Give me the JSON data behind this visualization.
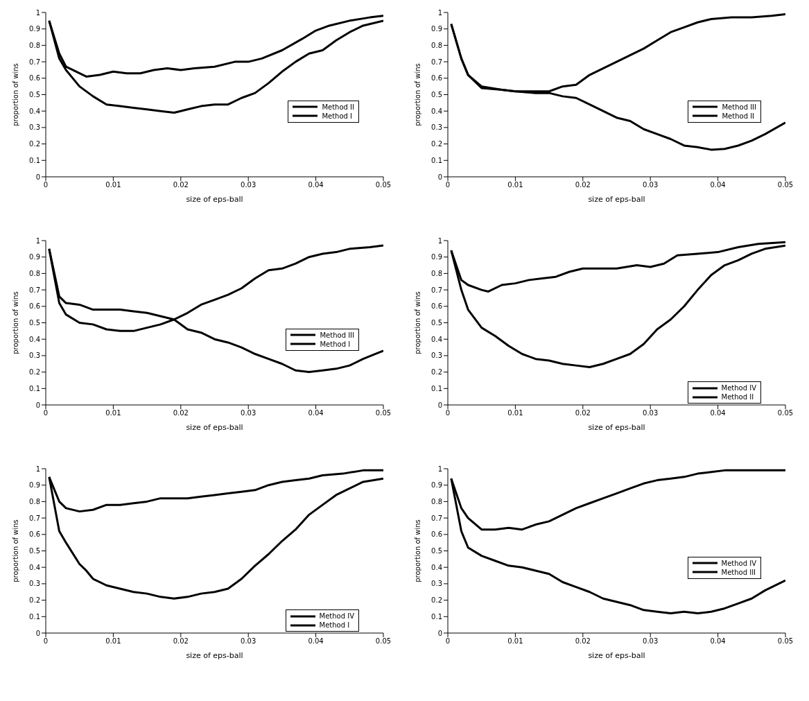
{
  "chart_data": [
    {
      "type": "line",
      "xlabel": "size of eps-ball",
      "ylabel": "proportion of wins",
      "xlim": [
        0,
        0.05
      ],
      "ylim": [
        0,
        1
      ],
      "xticks": [
        0,
        0.01,
        0.02,
        0.03,
        0.04,
        0.05
      ],
      "yticks": [
        0,
        0.1,
        0.2,
        0.3,
        0.4,
        0.5,
        0.6,
        0.7,
        0.8,
        0.9,
        1
      ],
      "legend": "right",
      "marker": "none",
      "line_style": "solid",
      "series": [
        {
          "name": "Method II",
          "color": "#000000",
          "x": [
            0.0005,
            0.002,
            0.003,
            0.005,
            0.006,
            0.008,
            0.01,
            0.012,
            0.014,
            0.016,
            0.018,
            0.02,
            0.022,
            0.025,
            0.028,
            0.03,
            0.032,
            0.035,
            0.038,
            0.04,
            0.042,
            0.045,
            0.048,
            0.05
          ],
          "values": [
            0.95,
            0.75,
            0.67,
            0.63,
            0.61,
            0.62,
            0.64,
            0.63,
            0.63,
            0.65,
            0.66,
            0.65,
            0.66,
            0.67,
            0.7,
            0.7,
            0.72,
            0.77,
            0.84,
            0.89,
            0.92,
            0.95,
            0.97,
            0.98
          ]
        },
        {
          "name": "Method I",
          "color": "#000000",
          "x": [
            0.0005,
            0.002,
            0.003,
            0.005,
            0.007,
            0.009,
            0.011,
            0.013,
            0.015,
            0.017,
            0.019,
            0.021,
            0.023,
            0.025,
            0.027,
            0.029,
            0.031,
            0.033,
            0.035,
            0.037,
            0.039,
            0.041,
            0.043,
            0.045,
            0.047,
            0.05
          ],
          "values": [
            0.95,
            0.72,
            0.65,
            0.55,
            0.49,
            0.44,
            0.43,
            0.42,
            0.41,
            0.4,
            0.39,
            0.41,
            0.43,
            0.44,
            0.44,
            0.48,
            0.51,
            0.57,
            0.64,
            0.7,
            0.75,
            0.77,
            0.83,
            0.88,
            0.92,
            0.95
          ]
        }
      ]
    },
    {
      "type": "line",
      "xlabel": "size of eps-ball",
      "ylabel": "proportion of wins",
      "xlim": [
        0,
        0.05
      ],
      "ylim": [
        0,
        1
      ],
      "xticks": [
        0,
        0.01,
        0.02,
        0.03,
        0.04,
        0.05
      ],
      "yticks": [
        0,
        0.1,
        0.2,
        0.3,
        0.4,
        0.5,
        0.6,
        0.7,
        0.8,
        0.9,
        1
      ],
      "legend": "right",
      "marker": "none",
      "line_style": "solid",
      "series": [
        {
          "name": "Method III",
          "color": "#000000",
          "x": [
            0.0005,
            0.002,
            0.003,
            0.005,
            0.008,
            0.01,
            0.012,
            0.015,
            0.017,
            0.019,
            0.021,
            0.023,
            0.025,
            0.027,
            0.029,
            0.031,
            0.033,
            0.035,
            0.037,
            0.039,
            0.042,
            0.045,
            0.048,
            0.05
          ],
          "values": [
            0.93,
            0.72,
            0.62,
            0.55,
            0.53,
            0.52,
            0.52,
            0.52,
            0.55,
            0.56,
            0.62,
            0.66,
            0.7,
            0.74,
            0.78,
            0.83,
            0.88,
            0.91,
            0.94,
            0.96,
            0.97,
            0.97,
            0.98,
            0.99
          ]
        },
        {
          "name": "Method II",
          "color": "#000000",
          "x": [
            0.0005,
            0.002,
            0.003,
            0.005,
            0.008,
            0.01,
            0.013,
            0.015,
            0.017,
            0.019,
            0.021,
            0.023,
            0.025,
            0.027,
            0.029,
            0.031,
            0.033,
            0.035,
            0.037,
            0.039,
            0.041,
            0.043,
            0.045,
            0.047,
            0.05
          ],
          "values": [
            0.93,
            0.72,
            0.62,
            0.54,
            0.53,
            0.52,
            0.51,
            0.51,
            0.49,
            0.48,
            0.44,
            0.4,
            0.36,
            0.34,
            0.29,
            0.26,
            0.23,
            0.19,
            0.18,
            0.165,
            0.17,
            0.19,
            0.22,
            0.26,
            0.33
          ]
        }
      ]
    },
    {
      "type": "line",
      "xlabel": "size of eps-ball",
      "ylabel": "proportion of wins",
      "xlim": [
        0,
        0.05
      ],
      "ylim": [
        0,
        1
      ],
      "xticks": [
        0,
        0.01,
        0.02,
        0.03,
        0.04,
        0.05
      ],
      "yticks": [
        0,
        0.1,
        0.2,
        0.3,
        0.4,
        0.5,
        0.6,
        0.7,
        0.8,
        0.9,
        1
      ],
      "legend": "right",
      "marker": "none",
      "line_style": "solid",
      "series": [
        {
          "name": "Method III",
          "color": "#000000",
          "x": [
            0.0005,
            0.002,
            0.003,
            0.005,
            0.007,
            0.009,
            0.011,
            0.013,
            0.015,
            0.017,
            0.019,
            0.021,
            0.023,
            0.025,
            0.027,
            0.029,
            0.031,
            0.033,
            0.035,
            0.037,
            0.039,
            0.041,
            0.043,
            0.045,
            0.047,
            0.05
          ],
          "values": [
            0.95,
            0.66,
            0.62,
            0.61,
            0.58,
            0.58,
            0.58,
            0.57,
            0.56,
            0.54,
            0.52,
            0.46,
            0.44,
            0.4,
            0.38,
            0.35,
            0.31,
            0.28,
            0.25,
            0.21,
            0.2,
            0.21,
            0.22,
            0.24,
            0.28,
            0.33
          ]
        },
        {
          "name": "Method I",
          "color": "#000000",
          "x": [
            0.0005,
            0.002,
            0.003,
            0.005,
            0.007,
            0.009,
            0.011,
            0.013,
            0.015,
            0.017,
            0.019,
            0.021,
            0.023,
            0.025,
            0.027,
            0.029,
            0.031,
            0.033,
            0.035,
            0.037,
            0.039,
            0.041,
            0.043,
            0.045,
            0.048,
            0.05
          ],
          "values": [
            0.95,
            0.62,
            0.55,
            0.5,
            0.49,
            0.46,
            0.45,
            0.45,
            0.47,
            0.49,
            0.52,
            0.56,
            0.61,
            0.64,
            0.67,
            0.71,
            0.77,
            0.82,
            0.83,
            0.86,
            0.9,
            0.92,
            0.93,
            0.95,
            0.96,
            0.97
          ]
        }
      ]
    },
    {
      "type": "line",
      "xlabel": "size of eps-ball",
      "ylabel": "proportion of wins",
      "xlim": [
        0,
        0.05
      ],
      "ylim": [
        0,
        1
      ],
      "xticks": [
        0,
        0.01,
        0.02,
        0.03,
        0.04,
        0.05
      ],
      "yticks": [
        0,
        0.1,
        0.2,
        0.3,
        0.4,
        0.5,
        0.6,
        0.7,
        0.8,
        0.9,
        1
      ],
      "legend": "bottom right",
      "marker": "none",
      "line_style": "solid",
      "series": [
        {
          "name": "Method IV",
          "color": "#000000",
          "x": [
            0.0005,
            0.002,
            0.003,
            0.005,
            0.006,
            0.008,
            0.01,
            0.012,
            0.014,
            0.016,
            0.018,
            0.02,
            0.022,
            0.025,
            0.028,
            0.03,
            0.032,
            0.034,
            0.037,
            0.04,
            0.043,
            0.046,
            0.05
          ],
          "values": [
            0.94,
            0.76,
            0.73,
            0.7,
            0.69,
            0.73,
            0.74,
            0.76,
            0.77,
            0.78,
            0.81,
            0.83,
            0.83,
            0.83,
            0.85,
            0.84,
            0.86,
            0.91,
            0.92,
            0.93,
            0.96,
            0.98,
            0.99
          ]
        },
        {
          "name": "Method II",
          "color": "#000000",
          "x": [
            0.0005,
            0.002,
            0.003,
            0.005,
            0.007,
            0.009,
            0.011,
            0.013,
            0.015,
            0.017,
            0.019,
            0.021,
            0.023,
            0.025,
            0.027,
            0.029,
            0.031,
            0.033,
            0.035,
            0.037,
            0.039,
            0.041,
            0.043,
            0.045,
            0.047,
            0.05
          ],
          "values": [
            0.94,
            0.7,
            0.58,
            0.47,
            0.42,
            0.36,
            0.31,
            0.28,
            0.27,
            0.25,
            0.24,
            0.23,
            0.25,
            0.28,
            0.31,
            0.37,
            0.46,
            0.52,
            0.6,
            0.7,
            0.79,
            0.85,
            0.88,
            0.92,
            0.95,
            0.97
          ]
        }
      ]
    },
    {
      "type": "line",
      "xlabel": "size of eps-ball",
      "ylabel": "proportion of wins",
      "xlim": [
        0,
        0.05
      ],
      "ylim": [
        0,
        1
      ],
      "xticks": [
        0,
        0.01,
        0.02,
        0.03,
        0.04,
        0.05
      ],
      "yticks": [
        0,
        0.1,
        0.2,
        0.3,
        0.4,
        0.5,
        0.6,
        0.7,
        0.8,
        0.9,
        1
      ],
      "legend": "bottom right",
      "marker": "none",
      "line_style": "solid",
      "series": [
        {
          "name": "Method IV",
          "color": "#000000",
          "x": [
            0.0005,
            0.002,
            0.003,
            0.005,
            0.007,
            0.009,
            0.011,
            0.013,
            0.015,
            0.017,
            0.019,
            0.021,
            0.023,
            0.025,
            0.027,
            0.029,
            0.031,
            0.033,
            0.035,
            0.037,
            0.039,
            0.041,
            0.044,
            0.047,
            0.05
          ],
          "values": [
            0.95,
            0.8,
            0.76,
            0.74,
            0.75,
            0.78,
            0.78,
            0.79,
            0.8,
            0.82,
            0.82,
            0.82,
            0.83,
            0.84,
            0.85,
            0.86,
            0.87,
            0.9,
            0.92,
            0.93,
            0.94,
            0.96,
            0.97,
            0.99,
            0.99
          ]
        },
        {
          "name": "Method I",
          "color": "#000000",
          "x": [
            0.0005,
            0.002,
            0.003,
            0.005,
            0.006,
            0.007,
            0.009,
            0.011,
            0.013,
            0.015,
            0.017,
            0.019,
            0.021,
            0.023,
            0.025,
            0.027,
            0.029,
            0.031,
            0.033,
            0.035,
            0.037,
            0.039,
            0.041,
            0.043,
            0.045,
            0.047,
            0.05
          ],
          "values": [
            0.95,
            0.62,
            0.55,
            0.42,
            0.38,
            0.33,
            0.29,
            0.27,
            0.25,
            0.24,
            0.22,
            0.21,
            0.22,
            0.24,
            0.25,
            0.27,
            0.33,
            0.41,
            0.48,
            0.56,
            0.63,
            0.72,
            0.78,
            0.84,
            0.88,
            0.92,
            0.94
          ]
        }
      ]
    },
    {
      "type": "line",
      "xlabel": "size of eps-ball",
      "ylabel": "proportion of wins",
      "xlim": [
        0,
        0.05
      ],
      "ylim": [
        0,
        1
      ],
      "xticks": [
        0,
        0.01,
        0.02,
        0.03,
        0.04,
        0.05
      ],
      "yticks": [
        0,
        0.1,
        0.2,
        0.3,
        0.4,
        0.5,
        0.6,
        0.7,
        0.8,
        0.9,
        1
      ],
      "legend": "right",
      "marker": "none",
      "line_style": "solid",
      "series": [
        {
          "name": "Method IV",
          "color": "#000000",
          "x": [
            0.0005,
            0.002,
            0.003,
            0.005,
            0.007,
            0.009,
            0.011,
            0.013,
            0.015,
            0.017,
            0.019,
            0.021,
            0.023,
            0.025,
            0.027,
            0.029,
            0.031,
            0.033,
            0.035,
            0.037,
            0.039,
            0.041,
            0.045,
            0.05
          ],
          "values": [
            0.94,
            0.76,
            0.7,
            0.63,
            0.63,
            0.64,
            0.63,
            0.66,
            0.68,
            0.72,
            0.76,
            0.79,
            0.82,
            0.85,
            0.88,
            0.91,
            0.93,
            0.94,
            0.95,
            0.97,
            0.98,
            0.99,
            0.99,
            0.99
          ]
        },
        {
          "name": "Method III",
          "color": "#000000",
          "x": [
            0.0005,
            0.002,
            0.003,
            0.005,
            0.007,
            0.009,
            0.011,
            0.013,
            0.015,
            0.017,
            0.019,
            0.021,
            0.023,
            0.025,
            0.027,
            0.029,
            0.031,
            0.033,
            0.035,
            0.037,
            0.039,
            0.041,
            0.043,
            0.045,
            0.047,
            0.05
          ],
          "values": [
            0.94,
            0.62,
            0.52,
            0.47,
            0.44,
            0.41,
            0.4,
            0.38,
            0.36,
            0.31,
            0.28,
            0.25,
            0.21,
            0.19,
            0.17,
            0.14,
            0.13,
            0.12,
            0.13,
            0.12,
            0.13,
            0.15,
            0.18,
            0.21,
            0.26,
            0.32
          ]
        }
      ]
    }
  ]
}
